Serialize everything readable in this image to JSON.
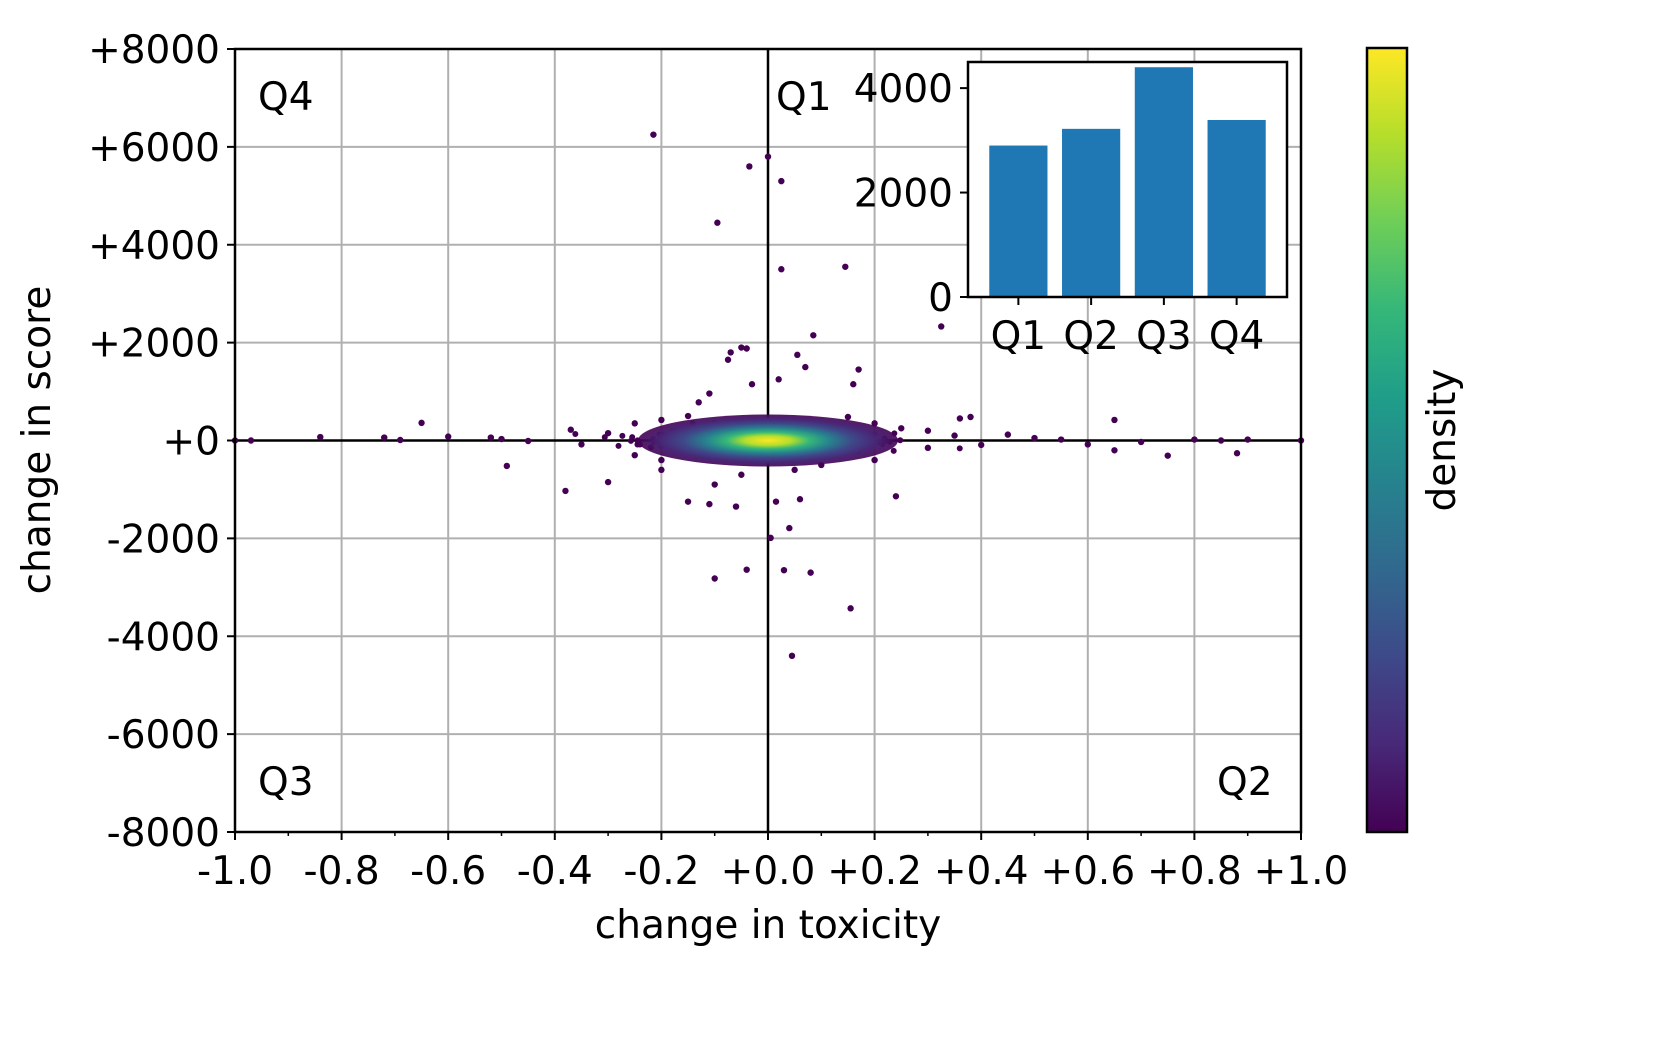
{
  "chart_data": [
    {
      "type": "scatter",
      "xlabel": "change in toxicity",
      "ylabel": "change in score",
      "xlim": [
        -1.0,
        1.0
      ],
      "ylim": [
        -8000,
        8000
      ],
      "grid": true,
      "x_ticks": [
        "-1.0",
        "-0.8",
        "-0.6",
        "-0.4",
        "-0.2",
        "+0.0",
        "+0.2",
        "+0.4",
        "+0.6",
        "+0.8",
        "+1.0"
      ],
      "y_ticks": [
        "+8000",
        "+6000",
        "+4000",
        "+2000",
        "+0",
        "-2000",
        "-4000",
        "-6000",
        "-8000"
      ],
      "quadrant_labels": {
        "q1": "Q1",
        "q2": "Q2",
        "q3": "Q3",
        "q4": "Q4"
      },
      "colorbar_label": "density",
      "colormap": [
        "#440154",
        "#482878",
        "#3e4989",
        "#31688e",
        "#26828e",
        "#1f9e89",
        "#35b779",
        "#6ece58",
        "#b5de2b",
        "#fde725"
      ],
      "points": [
        [
          -0.215,
          6250
        ],
        [
          0.0,
          5800
        ],
        [
          -0.035,
          5600
        ],
        [
          0.025,
          5300
        ],
        [
          -0.095,
          4450
        ],
        [
          0.025,
          3500
        ],
        [
          0.145,
          3550
        ],
        [
          0.325,
          2330
        ],
        [
          0.085,
          2150
        ],
        [
          -0.05,
          1900
        ],
        [
          -0.04,
          1880
        ],
        [
          -0.075,
          1650
        ],
        [
          -0.07,
          1800
        ],
        [
          0.055,
          1750
        ],
        [
          0.07,
          1500
        ],
        [
          -0.03,
          1150
        ],
        [
          0.02,
          1250
        ],
        [
          -0.11,
          960
        ],
        [
          0.17,
          1450
        ],
        [
          0.16,
          1150
        ],
        [
          -0.13,
          780
        ],
        [
          -0.65,
          360
        ],
        [
          -0.52,
          60
        ],
        [
          -0.72,
          60
        ],
        [
          -0.84,
          70
        ],
        [
          -0.97,
          0
        ],
        [
          -1.0,
          0
        ],
        [
          -0.6,
          80
        ],
        [
          -0.69,
          10
        ],
        [
          -0.5,
          30
        ],
        [
          -0.45,
          -10
        ],
        [
          -0.37,
          220
        ],
        [
          -0.35,
          -80
        ],
        [
          0.38,
          480
        ],
        [
          0.36,
          450
        ],
        [
          0.65,
          420
        ],
        [
          0.45,
          120
        ],
        [
          0.55,
          20
        ],
        [
          0.7,
          -30
        ],
        [
          0.8,
          20
        ],
        [
          0.85,
          0
        ],
        [
          0.9,
          20
        ],
        [
          0.88,
          -260
        ],
        [
          1.0,
          0
        ],
        [
          0.65,
          -200
        ],
        [
          0.75,
          -310
        ],
        [
          0.6,
          -80
        ],
        [
          0.5,
          50
        ],
        [
          0.4,
          -90
        ],
        [
          -0.49,
          -520
        ],
        [
          -0.38,
          -1030
        ],
        [
          -0.3,
          -850
        ],
        [
          -0.2,
          -600
        ],
        [
          -0.1,
          -900
        ],
        [
          -0.15,
          -1250
        ],
        [
          -0.11,
          -1300
        ],
        [
          -0.06,
          -1350
        ],
        [
          0.015,
          -1250
        ],
        [
          0.06,
          -1200
        ],
        [
          0.24,
          -1140
        ],
        [
          -0.1,
          -2820
        ],
        [
          -0.04,
          -2640
        ],
        [
          0.03,
          -2650
        ],
        [
          0.08,
          -2700
        ],
        [
          0.04,
          -1790
        ],
        [
          0.005,
          -1990
        ],
        [
          0.155,
          -3430
        ],
        [
          0.045,
          -4400
        ],
        [
          -0.25,
          350
        ],
        [
          -0.2,
          420
        ],
        [
          -0.15,
          500
        ],
        [
          -0.1,
          350
        ],
        [
          0.1,
          300
        ],
        [
          0.15,
          480
        ],
        [
          0.2,
          350
        ],
        [
          0.25,
          250
        ],
        [
          -0.3,
          150
        ],
        [
          0.3,
          200
        ],
        [
          0.35,
          100
        ],
        [
          0.3,
          -150
        ],
        [
          -0.25,
          -300
        ],
        [
          -0.2,
          -400
        ],
        [
          0.1,
          -500
        ],
        [
          0.2,
          -400
        ],
        [
          -0.05,
          -700
        ],
        [
          0.05,
          -600
        ]
      ]
    },
    {
      "type": "bar",
      "categories": [
        "Q1",
        "Q2",
        "Q3",
        "Q4"
      ],
      "values": [
        2900,
        3220,
        4400,
        3390
      ],
      "ylim": [
        0,
        4500
      ],
      "y_ticks": [
        "0",
        "2000",
        "4000"
      ],
      "color": "#1f77b4"
    }
  ]
}
